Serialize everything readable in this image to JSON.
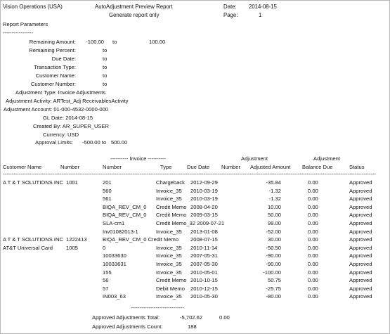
{
  "header": {
    "org": "Vision Operations (USA)",
    "report_title": "AutoAdjustment Preview Report",
    "report_subtitle": "Generate report only",
    "date_label": "Date:",
    "date_value": "2014-08-15",
    "page_label": "Page:",
    "page_value": "1"
  },
  "params": {
    "section_title": "Report Parameters",
    "section_rule": "-----------------",
    "remaining_amount": {
      "label": "Remaining Amount:",
      "from": "-100.00",
      "to_word": "to",
      "to": "100.00"
    },
    "remaining_percent": {
      "label": "Remaining Percent:",
      "to_word": "to"
    },
    "due_date": {
      "label": "Due Date:",
      "to_word": "to"
    },
    "transaction_type": {
      "label": "Transaction Type:",
      "to_word": "to"
    },
    "customer_name": {
      "label": "Customer Name:",
      "to_word": "to"
    },
    "customer_number": {
      "label": "Customer Number:",
      "to_word": "to"
    },
    "adjustment_type": "Adjustment Type: Invoice Adjustments",
    "adjustment_activity": "Adjustment Activity: ARTest_Adj ReceivablesActivity",
    "adjustment_account": "Adjustment Account: 01-000-4532-0000-000",
    "gl_date": "GL Date: 2014-08-15",
    "created_by": "Created By: AR_SUPER_USER",
    "currency": "Currency: USD",
    "approval_limits": {
      "label": "Approval Limits:",
      "from": "-500.00 to",
      "to": "500.00"
    }
  },
  "table": {
    "group_invoice": "---------- Invoice ----------",
    "group_adjustment": "Adjustment",
    "group_adjustment2": "Adjustment",
    "columns": {
      "customer_name": "Customer Name",
      "number": "Number",
      "inv_number": "Number",
      "type": "Type",
      "due_date": "Due Date",
      "adj_number": "Number",
      "adjusted_amount": "Adjusted Amount",
      "balance_due": "Balance Due",
      "status": "Status"
    },
    "rule": "------------------------------------------------------------------------------------------------------------------------------------------------------------------------------------------------------------------",
    "rows": [
      {
        "customer": "A T & T SOLUTIONS INC",
        "cust_no": "1001",
        "inv": "201",
        "type": "Chargeback",
        "due": "2012-09-29",
        "amount": "-35.84",
        "balance": "0.00",
        "status": "Approved"
      },
      {
        "customer": "",
        "cust_no": "",
        "inv": "560",
        "type": "Invoice_35",
        "due": "2010-03-19",
        "amount": "-1.32",
        "balance": "0.00",
        "status": "Approved"
      },
      {
        "customer": "",
        "cust_no": "",
        "inv": "561",
        "type": "Invoice_35",
        "due": "2010-03-19",
        "amount": "-1.32",
        "balance": "0.00",
        "status": "Approved"
      },
      {
        "customer": "",
        "cust_no": "",
        "inv": "BIQA_REV_CM_0",
        "type": "Credit Memo",
        "due": "2008-04-20",
        "amount": "10.00",
        "balance": "0.00",
        "status": "Approved"
      },
      {
        "customer": "",
        "cust_no": "",
        "inv": "BIQA_REV_CM_0",
        "type": "Credit Memo",
        "due": "2009-03-15",
        "amount": "50.00",
        "balance": "0.00",
        "status": "Approved"
      },
      {
        "customer": "",
        "cust_no": "",
        "inv": "SLA-cm1",
        "type": "Credit Memo_32 2009-07-21",
        "due": "",
        "amount": "99.00",
        "balance": "0.00",
        "status": "Approved"
      },
      {
        "customer": "",
        "cust_no": "",
        "inv": "Inv01082013-1",
        "type": "Invoice_35",
        "due": "2013-01-08",
        "amount": "-52.00",
        "balance": "0.00",
        "status": "Approved"
      },
      {
        "customer": "A T & T SOLUTIONS INC",
        "cust_no": "1222413",
        "inv": "BIQA_REV_CM_0 Credit Memo",
        "type": "",
        "due": "2008-07-15",
        "amount": "30.00",
        "balance": "0.00",
        "status": "Approved"
      },
      {
        "customer": "AT&T Universal Card",
        "cust_no": "1005",
        "inv": "0",
        "type": "Invoice_35",
        "due": "2010-11-14",
        "amount": "-50.50",
        "balance": "0.00",
        "status": "Approved"
      },
      {
        "customer": "",
        "cust_no": "",
        "inv": "10033630",
        "type": "Invoice_35",
        "due": "2007-05-31",
        "amount": "-90.00",
        "balance": "0.00",
        "status": "Approved"
      },
      {
        "customer": "",
        "cust_no": "",
        "inv": "10033631",
        "type": "Invoice_35",
        "due": "2007-05-30",
        "amount": "-90.00",
        "balance": "0.00",
        "status": "Approved"
      },
      {
        "customer": "",
        "cust_no": "",
        "inv": "155",
        "type": "Invoice_35",
        "due": "2010-05-01",
        "amount": "-100.00",
        "balance": "0.00",
        "status": "Approved"
      },
      {
        "customer": "",
        "cust_no": "",
        "inv": "56",
        "type": "Credit Memo",
        "due": "2010-10-15",
        "amount": "50.75",
        "balance": "0.00",
        "status": "Approved"
      },
      {
        "customer": "",
        "cust_no": "",
        "inv": "57",
        "type": "Debit Memo",
        "due": "2010-12-15",
        "amount": "-25.75",
        "balance": "0.00",
        "status": "Approved"
      },
      {
        "customer": "",
        "cust_no": "",
        "inv": "IN003_63",
        "type": "Invoice_35",
        "due": "2010-05-30",
        "amount": "-80.00",
        "balance": "0.00",
        "status": "Approved"
      }
    ]
  },
  "totals": {
    "rule": "------------------------------",
    "total_label": "Approved Adjustments Total:",
    "total_value": "-5,702.62",
    "total_balance": "0.00",
    "count_label": "Approved Adjustments Count:",
    "count_value": "188"
  }
}
